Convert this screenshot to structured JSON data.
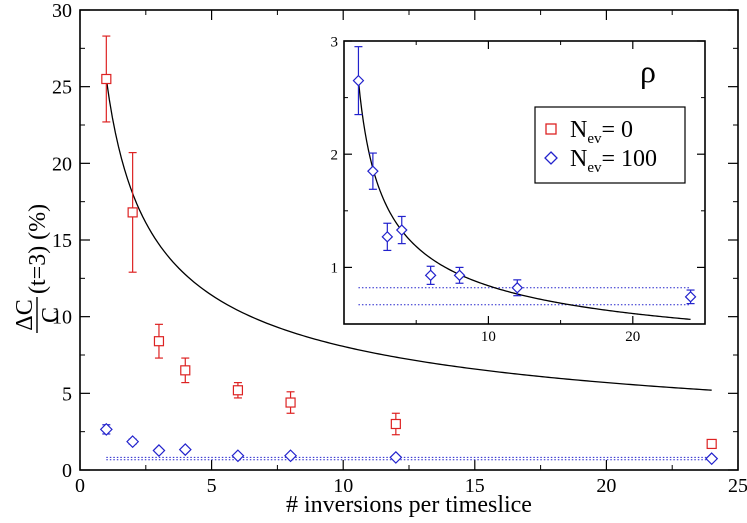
{
  "chart_data": [
    {
      "type": "scatter",
      "title": "",
      "xlabel": "# inversions per timeslice",
      "ylabel_parts": {
        "top": "ΔC",
        "bottom": "C",
        "suffix": "(t=3) (%)"
      },
      "xlim": [
        0,
        25
      ],
      "ylim": [
        0,
        30
      ],
      "xticks": [
        0,
        5,
        10,
        15,
        20,
        25
      ],
      "yticks": [
        0,
        5,
        10,
        15,
        20,
        25,
        30
      ],
      "xtick_labels": [
        "0",
        "5",
        "10",
        "15",
        "20",
        "25"
      ],
      "ytick_labels": [
        "0",
        "5",
        "10",
        "15",
        "20",
        "25",
        "30"
      ],
      "series": [
        {
          "name": "Nev=0",
          "marker": "square",
          "color": "#dd2222",
          "x": [
            1,
            2,
            3,
            4,
            6,
            8,
            12,
            24
          ],
          "y": [
            25.5,
            16.8,
            8.4,
            6.5,
            5.2,
            4.4,
            3.0,
            1.7
          ],
          "err": [
            2.8,
            3.9,
            1.1,
            0.8,
            0.5,
            0.7,
            0.7,
            0.2
          ]
        },
        {
          "name": "Nev=100",
          "marker": "diamond",
          "color": "#2222cc",
          "x": [
            1,
            2,
            3,
            4,
            6,
            8,
            12,
            24
          ],
          "y": [
            2.65,
            1.85,
            1.27,
            1.33,
            0.93,
            0.93,
            0.82,
            0.74
          ],
          "err": [
            0.3,
            0.16,
            0.12,
            0.12,
            0.08,
            0.07,
            0.07,
            0.06
          ]
        }
      ],
      "curve": {
        "name": "1/sqrt(n) scaling",
        "x_range": [
          1,
          24
        ],
        "scale": 25.5,
        "color": "#000000"
      },
      "bands": [
        {
          "name": "band-upper",
          "y": 0.82,
          "color": "#2222cc"
        },
        {
          "name": "band-lower",
          "y": 0.67,
          "color": "#2222cc"
        }
      ]
    },
    {
      "type": "scatter",
      "title": "ρ",
      "xlim": [
        0,
        25
      ],
      "ylim": [
        0.5,
        3
      ],
      "xticks": [
        10,
        20
      ],
      "yticks": [
        1,
        2,
        3
      ],
      "xtick_labels": [
        "10",
        "20"
      ],
      "ytick_labels": [
        "1",
        "2",
        "3"
      ],
      "series": [
        {
          "name": "Nev=100",
          "marker": "diamond",
          "color": "#2222cc",
          "x": [
            1,
            2,
            3,
            4,
            6,
            8,
            12,
            24
          ],
          "y": [
            2.65,
            1.85,
            1.27,
            1.33,
            0.93,
            0.93,
            0.82,
            0.74
          ],
          "err": [
            0.3,
            0.16,
            0.12,
            0.12,
            0.08,
            0.07,
            0.07,
            0.06
          ]
        }
      ],
      "curve": {
        "name": "1/sqrt(n) scaling",
        "x_range": [
          1,
          24
        ],
        "scale": 2.65,
        "color": "#000000"
      },
      "bands": [
        {
          "name": "band-upper",
          "y": 0.82,
          "color": "#2222cc"
        },
        {
          "name": "band-lower",
          "y": 0.67,
          "color": "#2222cc"
        }
      ]
    }
  ],
  "legend": {
    "entries": [
      {
        "marker": "square",
        "color": "#dd2222",
        "base": "N",
        "sub": "ev",
        "suffix": "= 0"
      },
      {
        "marker": "diamond",
        "color": "#2222cc",
        "base": "N",
        "sub": "ev",
        "suffix": "= 100"
      }
    ]
  }
}
